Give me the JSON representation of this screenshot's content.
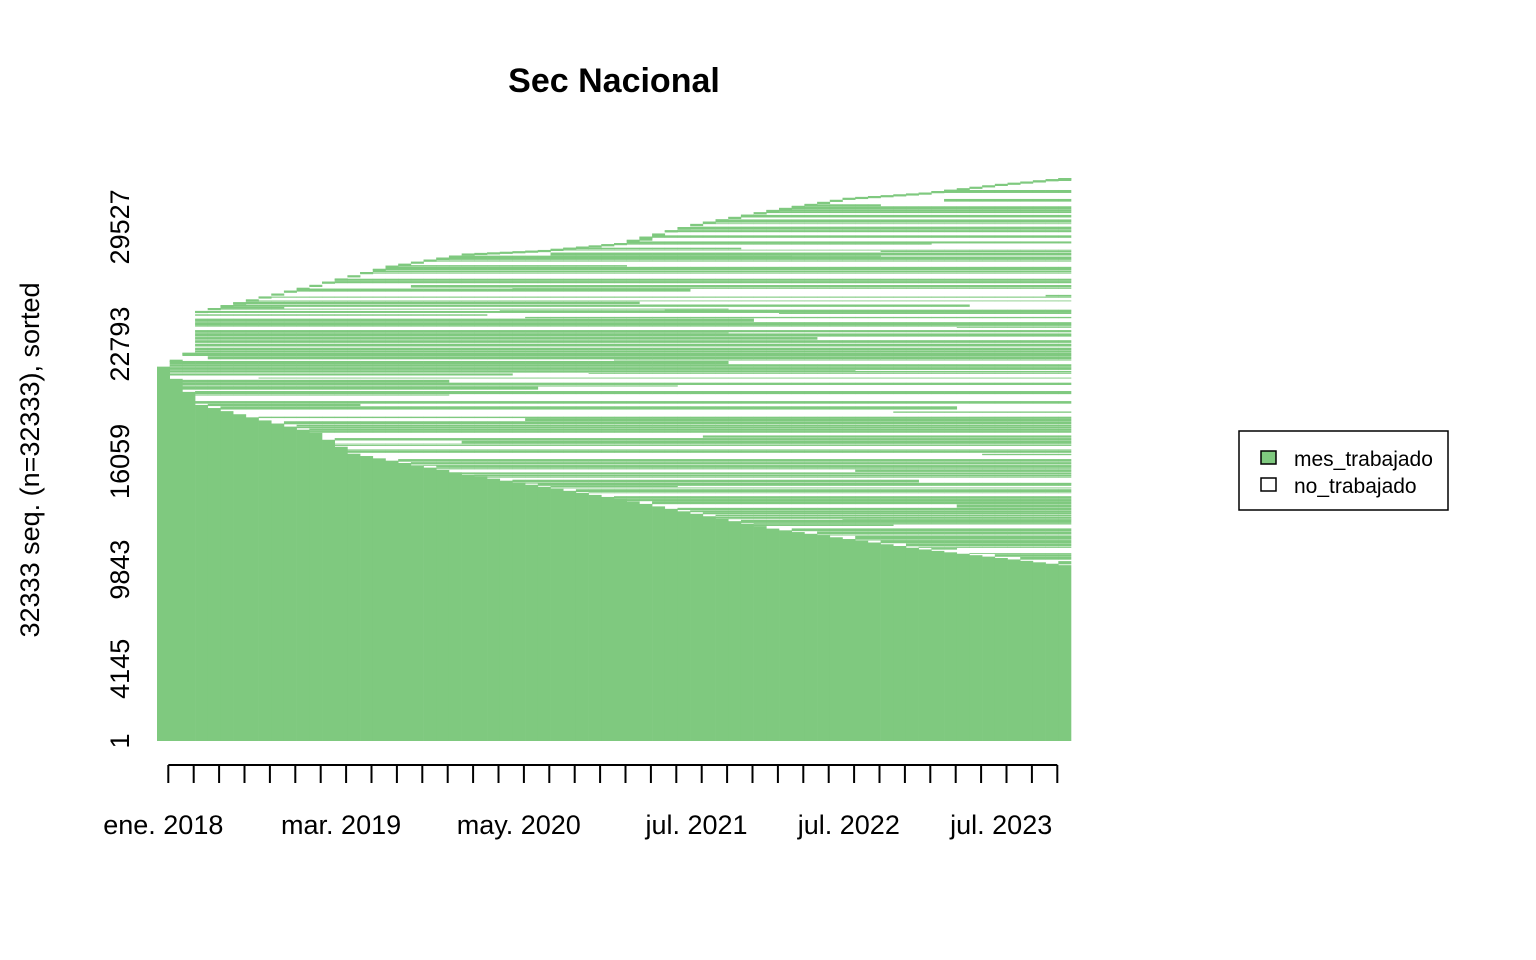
{
  "chart_data": {
    "type": "sequence_index",
    "title": "Sec Nacional",
    "ylabel": "32333 seq. (n=32333), sorted",
    "xlabel": "",
    "n_sequences": 32333,
    "y_ticks": [
      "1",
      "4145",
      "9843",
      "16059",
      "22793",
      "29527"
    ],
    "x_tick_labels": [
      {
        "label": "ene. 2018",
        "index": 0
      },
      {
        "label": "mar. 2019",
        "index": 14
      },
      {
        "label": "may. 2020",
        "index": 28
      },
      {
        "label": "jul. 2021",
        "index": 42
      },
      {
        "label": "jul. 2022",
        "index": 54
      },
      {
        "label": "jul. 2023",
        "index": 66
      }
    ],
    "n_periods": 72,
    "legend": {
      "position": "right",
      "entries": [
        {
          "name": "mes_trabajado",
          "color": "#7fc97f"
        },
        {
          "name": "no_trabajado",
          "color": "#ffffff"
        }
      ]
    },
    "series": [
      {
        "name": "mes_trabajado",
        "description_upper_envelope": "sequences present per month (top of plotted area)",
        "top_sequences_by_month_anchor": [
          {
            "index": 0,
            "value": 21500
          },
          {
            "index": 1,
            "value": 21900
          },
          {
            "index": 2,
            "value": 22300
          },
          {
            "index": 3,
            "value": 24700
          },
          {
            "index": 6,
            "value": 25200
          },
          {
            "index": 12,
            "value": 26200
          },
          {
            "index": 18,
            "value": 27300
          },
          {
            "index": 24,
            "value": 28000
          },
          {
            "index": 30,
            "value": 28200
          },
          {
            "index": 36,
            "value": 28600
          },
          {
            "index": 42,
            "value": 29700
          },
          {
            "index": 48,
            "value": 30500
          },
          {
            "index": 54,
            "value": 31200
          },
          {
            "index": 60,
            "value": 31500
          },
          {
            "index": 66,
            "value": 32000
          },
          {
            "index": 71,
            "value": 32333
          }
        ],
        "always_worked_boundary_anchor": [
          {
            "index": 0,
            "value": 21500
          },
          {
            "index": 1,
            "value": 20800
          },
          {
            "index": 3,
            "value": 19300
          },
          {
            "index": 12,
            "value": 17700
          },
          {
            "index": 15,
            "value": 16500
          },
          {
            "index": 24,
            "value": 15300
          },
          {
            "index": 36,
            "value": 13900
          },
          {
            "index": 48,
            "value": 12200
          },
          {
            "index": 60,
            "value": 11000
          },
          {
            "index": 71,
            "value": 10100
          }
        ]
      }
    ]
  }
}
